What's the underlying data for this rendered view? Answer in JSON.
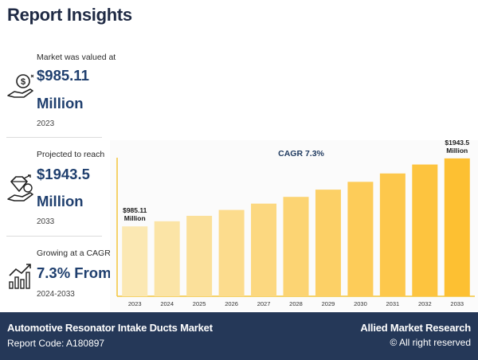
{
  "page_title": "Report Insights",
  "stats": [
    {
      "label": "Market was valued at",
      "value_line1": "$985.11",
      "value_line2": "Million",
      "sub": "2023",
      "icon": "money-hand-icon"
    },
    {
      "label": "Projected to reach",
      "value_line1": "$1943.5",
      "value_line2": "Million",
      "sub": "2033",
      "icon": "diamond-growth-icon"
    },
    {
      "label": "Growing at a CAGR",
      "value_line1": "7.3% From",
      "value_line2": "",
      "sub": "2024-2033",
      "icon": "growth-chart-icon"
    }
  ],
  "chart_data": {
    "type": "bar",
    "title": "CAGR 7.3%",
    "categories": [
      "2023",
      "2024",
      "2025",
      "2026",
      "2027",
      "2028",
      "2029",
      "2030",
      "2031",
      "2032",
      "2033"
    ],
    "values": [
      985.11,
      1057,
      1134,
      1217,
      1306,
      1401,
      1503,
      1613,
      1731,
      1857,
      1943.5
    ],
    "ylim": [
      0,
      2200
    ],
    "data_labels": [
      {
        "index": 0,
        "line1": "$985.11",
        "line2": "Million"
      },
      {
        "index": 10,
        "line1": "$1943.5",
        "line2": "Million"
      }
    ],
    "colors": [
      "#fbe8b3",
      "#fbe4a6",
      "#fbe09a",
      "#fcdc8d",
      "#fcd880",
      "#fcd473",
      "#fcd066",
      "#fdcc59",
      "#fdc84c",
      "#fdc43f",
      "#fdc032"
    ],
    "xlabel": "",
    "ylabel": ""
  },
  "footer": {
    "market_name": "Automotive Resonator Intake Ducts Market",
    "report_code": "Report Code: A180897",
    "brand": "Allied Market Research",
    "rights": "© All right reserved"
  }
}
